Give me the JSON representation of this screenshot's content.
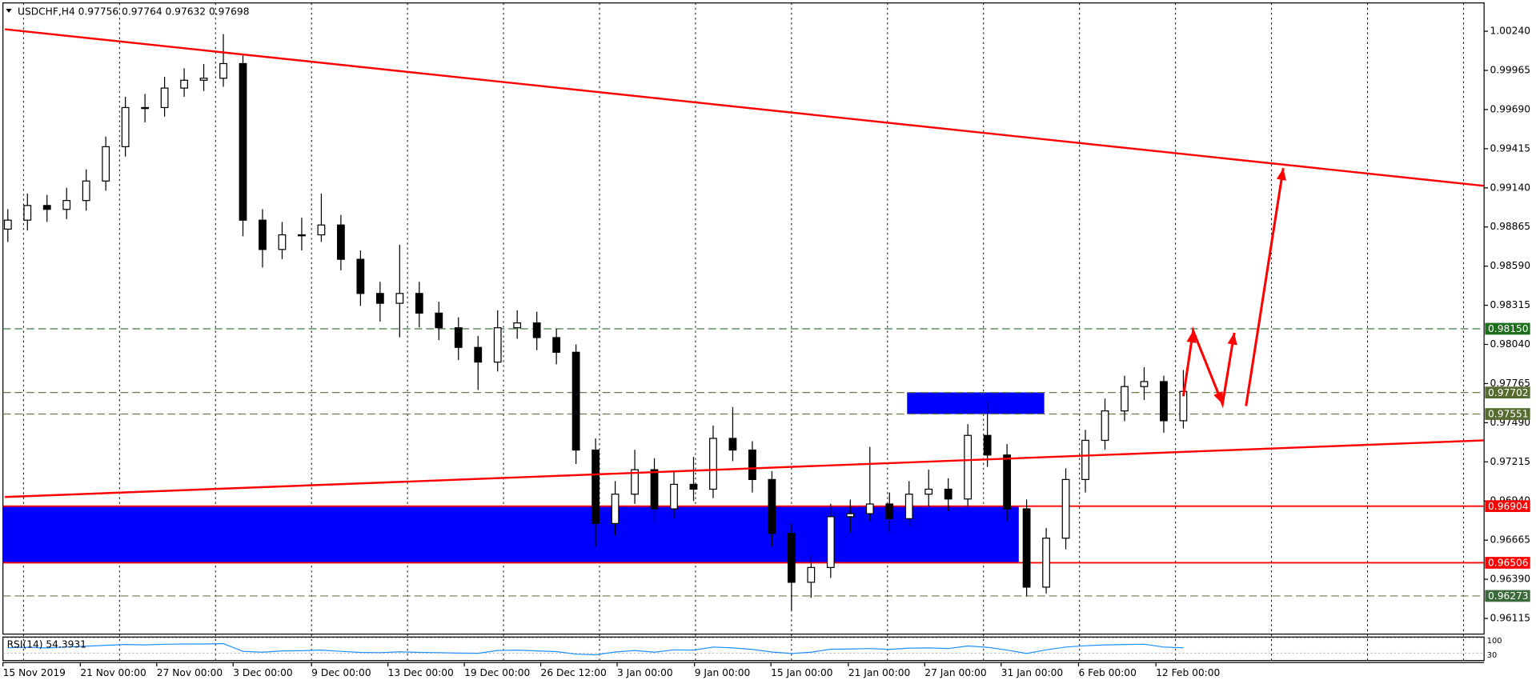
{
  "chart_data": {
    "type": "candlestick",
    "symbol": "USDCHF,H4",
    "header_values": [
      0.97756,
      0.97764,
      0.97632,
      0.97698
    ],
    "xlim": [
      -0.25,
      75.35
    ],
    "ylim": [
      0.96005,
      1.00439
    ],
    "xticks": [
      {
        "value": -0.25,
        "label": "15 Nov 2019"
      },
      {
        "value": 3.7,
        "label": "21 Nov 00:00"
      },
      {
        "value": 7.6,
        "label": "27 Nov 00:00"
      },
      {
        "value": 11.5,
        "label": "3 Dec 00:00"
      },
      {
        "value": 15.5,
        "label": "9 Dec 00:00"
      },
      {
        "value": 19.4,
        "label": "13 Dec 00:00"
      },
      {
        "value": 23.3,
        "label": "19 Dec 00:00"
      },
      {
        "value": 27.2,
        "label": "26 Dec 12:00"
      },
      {
        "value": 31.1,
        "label": "3 Jan 00:00"
      },
      {
        "value": 35.05,
        "label": "9 Jan 00:00"
      },
      {
        "value": 38.95,
        "label": "15 Jan 00:00"
      },
      {
        "value": 42.9,
        "label": "21 Jan 00:00"
      },
      {
        "value": 46.8,
        "label": "27 Jan 00:00"
      },
      {
        "value": 50.7,
        "label": "31 Jan 00:00"
      },
      {
        "value": 54.65,
        "label": "6 Feb 00:00"
      },
      {
        "value": 58.6,
        "label": "12 Feb 00:00"
      }
    ],
    "yticks": [
      {
        "value": 1.0024,
        "label": "1.00240"
      },
      0.99965,
      {
        "value": 0.9969,
        "label": "0.99690"
      },
      0.99415,
      {
        "value": 0.9914,
        "label": "0.99140"
      },
      0.98865,
      {
        "value": 0.9859,
        "label": "0.98590"
      },
      0.98315,
      {
        "value": 0.9804,
        "label": "0.98040"
      },
      0.97765,
      {
        "value": 0.9749,
        "label": "0.97490"
      },
      0.97215,
      {
        "value": 0.9694,
        "label": "0.96940"
      },
      0.96665,
      {
        "value": 0.9639,
        "label": "0.96390"
      },
      0.96115
    ],
    "open": [
      0.9885,
      0.98913,
      0.99016,
      0.98989,
      0.99051,
      0.99188,
      0.99429,
      0.99704,
      0.99704,
      0.99841,
      0.99896,
      0.9991,
      1.00013,
      0.98913,
      0.98707,
      0.9881,
      0.9881,
      0.98879,
      0.98638,
      0.98398,
      0.98329,
      0.98398,
      0.9826,
      0.98157,
      0.98019,
      0.97916,
      0.98157,
      0.98191,
      0.98088,
      0.97985,
      0.97298,
      0.96782,
      0.96988,
      0.9716,
      0.96885,
      0.97057,
      0.97023,
      0.9738,
      0.97298,
      0.97091,
      0.96713,
      0.96369,
      0.96473,
      0.9683,
      0.96851,
      0.96919,
      0.96816,
      0.96988,
      0.97023,
      0.96954,
      0.97401,
      0.97263,
      0.96885,
      0.96335,
      0.96679,
      0.97091,
      0.97366,
      0.97573,
      0.97744,
      0.97779,
      0.97504
    ],
    "high": [
      0.9899,
      0.991,
      0.9909,
      0.9914,
      0.9927,
      0.995,
      0.9978,
      0.998,
      0.9992,
      0.9998,
      1.0001,
      1.0022,
      1.0008,
      0.9899,
      0.989,
      0.9893,
      0.991,
      0.9895,
      0.987,
      0.9848,
      0.9874,
      0.9848,
      0.9834,
      0.9823,
      0.981,
      0.9828,
      0.9828,
      0.9827,
      0.9815,
      0.9804,
      0.9738,
      0.9708,
      0.973,
      0.9724,
      0.9715,
      0.9725,
      0.9747,
      0.976,
      0.9736,
      0.9715,
      0.9678,
      0.9656,
      0.9692,
      0.9695,
      0.9732,
      0.97,
      0.9708,
      0.9716,
      0.971,
      0.9748,
      0.9764,
      0.9734,
      0.9695,
      0.9675,
      0.9717,
      0.9744,
      0.9766,
      0.9782,
      0.9788,
      0.9782,
      0.9786
    ],
    "low": [
      0.9876,
      0.9884,
      0.989,
      0.9892,
      0.9898,
      0.9912,
      0.9936,
      0.996,
      0.9964,
      0.9978,
      0.9982,
      0.9985,
      0.988,
      0.9858,
      0.9864,
      0.987,
      0.9876,
      0.9856,
      0.9831,
      0.982,
      0.9809,
      0.9816,
      0.9807,
      0.9793,
      0.9772,
      0.9785,
      0.9808,
      0.98,
      0.979,
      0.972,
      0.9662,
      0.967,
      0.9692,
      0.9679,
      0.9682,
      0.9694,
      0.9696,
      0.9722,
      0.97,
      0.9662,
      0.9617,
      0.9626,
      0.964,
      0.9672,
      0.968,
      0.9672,
      0.9676,
      0.969,
      0.9687,
      0.969,
      0.9718,
      0.968,
      0.9627,
      0.9629,
      0.966,
      0.97,
      0.973,
      0.975,
      0.9765,
      0.9742,
      0.9745
    ],
    "close": [
      0.98913,
      0.99016,
      0.98989,
      0.99051,
      0.99188,
      0.99429,
      0.99704,
      0.99704,
      0.99841,
      0.99896,
      0.9991,
      1.00013,
      0.98913,
      0.98707,
      0.9881,
      0.9881,
      0.98879,
      0.98638,
      0.98398,
      0.98329,
      0.98398,
      0.9826,
      0.98157,
      0.98019,
      0.97916,
      0.98157,
      0.98191,
      0.98088,
      0.97985,
      0.97298,
      0.96782,
      0.96988,
      0.9716,
      0.96885,
      0.97057,
      0.97023,
      0.9738,
      0.97298,
      0.97091,
      0.96713,
      0.96369,
      0.96473,
      0.9683,
      0.96851,
      0.96919,
      0.96816,
      0.96988,
      0.97023,
      0.96954,
      0.97401,
      0.97263,
      0.96885,
      0.96335,
      0.96679,
      0.97091,
      0.97366,
      0.97573,
      0.97744,
      0.97779,
      0.97504,
      0.9771
    ],
    "candle_color": "#000000",
    "levels": [
      {
        "value": 0.9815,
        "label": "0.98150",
        "color": "#3d7a3d",
        "style": "dashed",
        "label_bg": "#1d6e1d"
      },
      {
        "value": 0.97702,
        "color": "#6b7a4a",
        "style": "dashed",
        "label_bg": "#556b2f"
      },
      {
        "value": 0.97551,
        "color": "#6b7a4a",
        "style": "dashed",
        "label_bg": "#556b2f"
      },
      {
        "value": 0.96904,
        "color": "#ff0000",
        "style": "solid",
        "label_bg": "#ff0000"
      },
      {
        "value": 0.96506,
        "color": "#ff0000",
        "style": "solid",
        "label_bg": "#ff0000"
      },
      {
        "value": 0.96273,
        "color": "#6b7a4a",
        "style": "dashed",
        "label_bg": "#3a6a3a"
      }
    ],
    "zones": [
      {
        "x": [
          -0.25,
          51.6
        ],
        "y": [
          0.96506,
          0.96904
        ],
        "color": "#0000ff"
      },
      {
        "x": [
          45.9,
          52.9
        ],
        "y": [
          0.97551,
          0.97703
        ],
        "color": "#0000ff"
      }
    ],
    "trendlines": [
      {
        "x": [
          -0.15,
          75.35
        ],
        "y": [
          1.00254,
          0.99154
        ],
        "color": "#ff0000"
      },
      {
        "x": [
          -0.15,
          75.35
        ],
        "y": [
          0.96968,
          0.97366
        ],
        "color": "#ff0000"
      }
    ],
    "arrows": [
      {
        "x": [
          60,
          60.5,
          62,
          62.6
        ],
        "y": [
          0.97676,
          0.98136,
          0.97621,
          0.98122
        ],
        "color": "#ff0000"
      },
      {
        "x": [
          63.2,
          65.1
        ],
        "y": [
          0.97607,
          0.99278
        ],
        "color": "#ff0000"
      }
    ],
    "rsi": {
      "label": "RSI(14) 54.3931",
      "ylim": [
        0,
        100
      ],
      "yticks": [
        100,
        30
      ],
      "color": "#1e90ff",
      "values": [
        55,
        57,
        54,
        58,
        62,
        66,
        70,
        68,
        71,
        72,
        72,
        74,
        38,
        34,
        40,
        41,
        44,
        38,
        33,
        32,
        36,
        33,
        32,
        30,
        29,
        42,
        44,
        40,
        37,
        25,
        22,
        35,
        42,
        34,
        45,
        44,
        58,
        54,
        47,
        35,
        28,
        34,
        48,
        49,
        51,
        47,
        53,
        54,
        51,
        63,
        57,
        44,
        28,
        45,
        58,
        64,
        68,
        70,
        71,
        58,
        54.3931
      ]
    }
  }
}
